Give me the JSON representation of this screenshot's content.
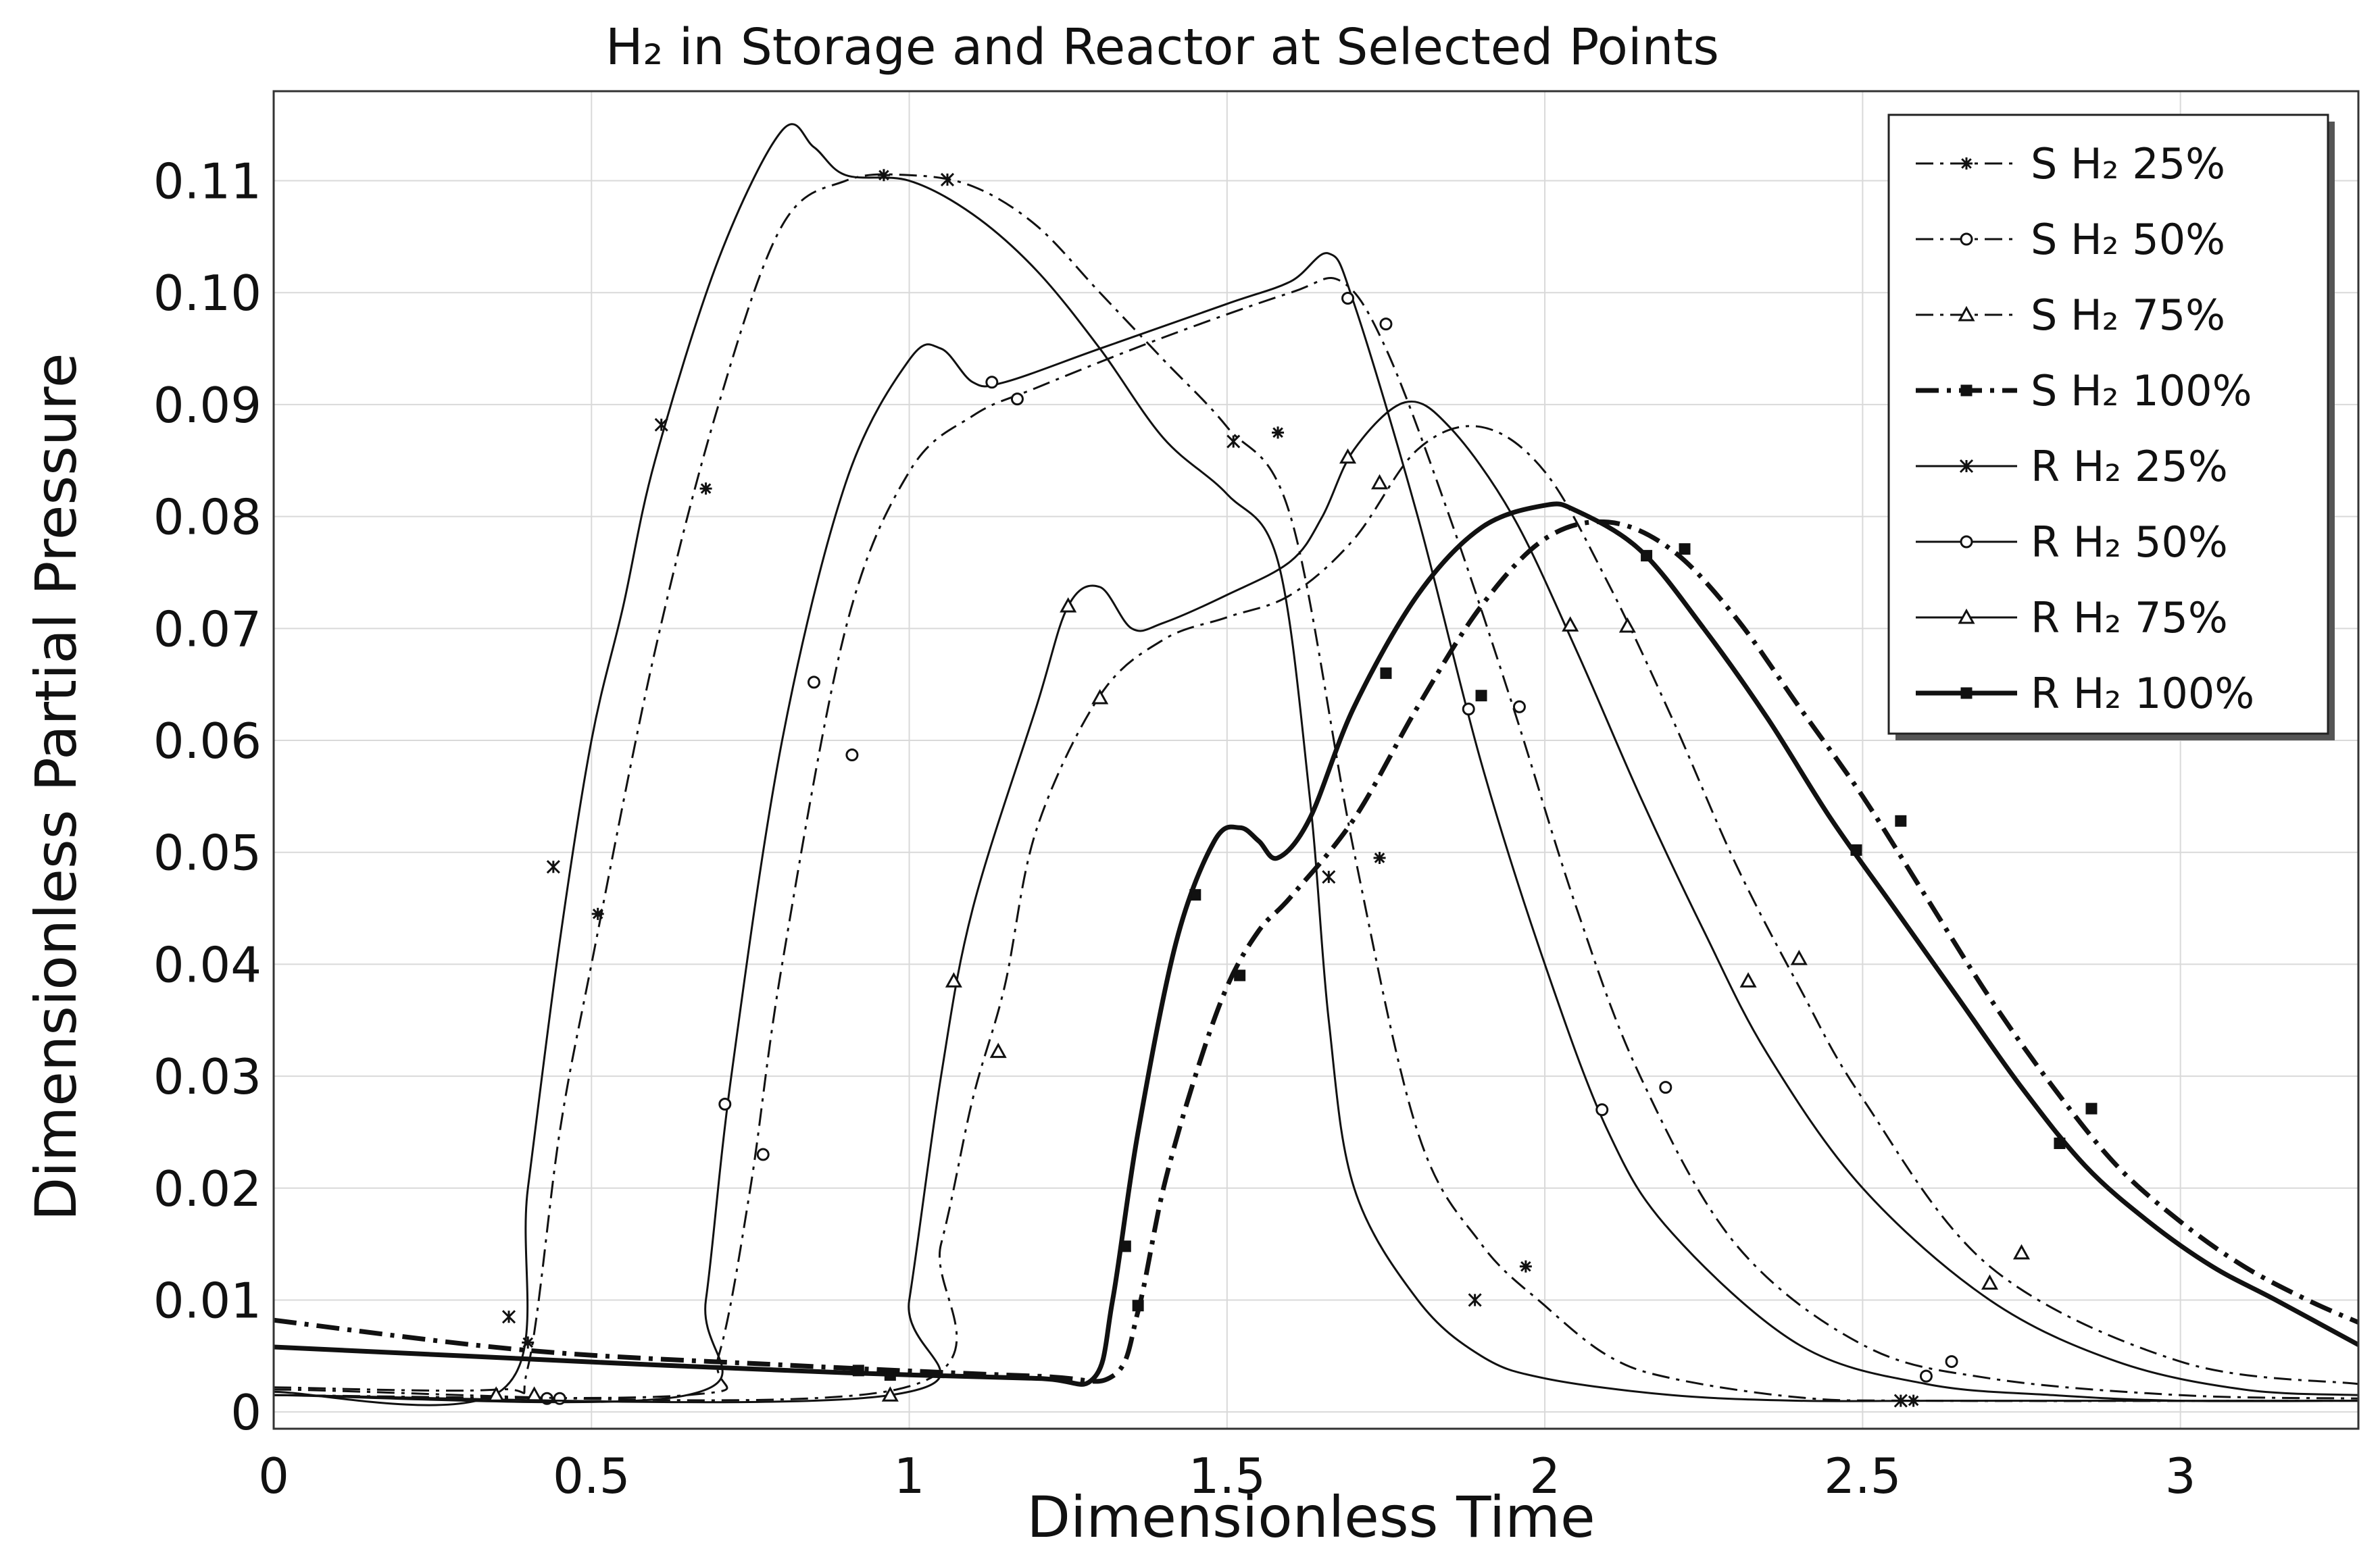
{
  "chart_data": {
    "type": "line",
    "title": "H₂ in Storage and Reactor at Selected Points",
    "xlabel": "Dimensionless Time",
    "ylabel": "Dimensionless Partial Pressure",
    "xlim": [
      0,
      3.28
    ],
    "ylim": [
      -0.0015,
      0.118
    ],
    "xticks": [
      0,
      0.5,
      1,
      1.5,
      2,
      2.5,
      3
    ],
    "xtick_labels": [
      "0",
      "0.5",
      "1",
      "1.5",
      "2",
      "2.5",
      "3"
    ],
    "yticks": [
      0,
      0.01,
      0.02,
      0.03,
      0.04,
      0.05,
      0.06,
      0.07,
      0.08,
      0.09,
      0.1,
      0.11
    ],
    "ytick_labels": [
      "0",
      "0.01",
      "0.02",
      "0.03",
      "0.04",
      "0.05",
      "0.06",
      "0.07",
      "0.08",
      "0.09",
      "0.10",
      "0.11"
    ],
    "grid": true,
    "legend_position": "top-right",
    "series": [
      {
        "name": "S H₂   25%",
        "style": "dashdot",
        "width": 3,
        "marker": "star",
        "x": [
          0,
          0.35,
          0.4,
          0.45,
          0.5,
          0.6,
          0.7,
          0.8,
          0.9,
          1.0,
          1.1,
          1.2,
          1.3,
          1.4,
          1.5,
          1.6,
          1.7,
          1.8,
          1.9,
          2.0,
          2.1,
          2.2,
          2.4,
          2.6,
          3.28
        ],
        "y": [
          0.0022,
          0.002,
          0.004,
          0.025,
          0.04,
          0.068,
          0.09,
          0.106,
          0.11,
          0.1105,
          0.1095,
          0.106,
          0.1,
          0.094,
          0.088,
          0.08,
          0.05,
          0.025,
          0.015,
          0.0095,
          0.005,
          0.003,
          0.0013,
          0.001,
          0.001
        ],
        "markers_x": [
          0.4,
          0.51,
          0.68,
          0.96,
          1.58,
          1.74,
          1.97,
          2.58
        ],
        "markers_y": [
          0.0062,
          0.0445,
          0.0825,
          0.1105,
          0.0875,
          0.0495,
          0.013,
          0.001
        ]
      },
      {
        "name": "S H₂ 50%",
        "style": "dashdot",
        "width": 3,
        "marker": "circle",
        "x": [
          0,
          0.65,
          0.7,
          0.75,
          0.8,
          0.9,
          1.0,
          1.1,
          1.2,
          1.4,
          1.6,
          1.68,
          1.75,
          1.85,
          1.95,
          2.05,
          2.15,
          2.3,
          2.5,
          2.7,
          3.0,
          3.28
        ],
        "y": [
          0.0015,
          0.0015,
          0.005,
          0.02,
          0.04,
          0.07,
          0.084,
          0.089,
          0.0915,
          0.096,
          0.1,
          0.101,
          0.095,
          0.08,
          0.063,
          0.045,
          0.03,
          0.015,
          0.006,
          0.003,
          0.0015,
          0.0012
        ],
        "markers_x": [
          0.43,
          0.77,
          0.91,
          1.17,
          1.75,
          1.96,
          2.19,
          2.64
        ],
        "markers_y": [
          0.0012,
          0.023,
          0.0587,
          0.0905,
          0.0972,
          0.063,
          0.029,
          0.0045
        ]
      },
      {
        "name": "S H₂  75%",
        "style": "dashdot",
        "width": 3,
        "marker": "triangle",
        "x": [
          0,
          0.98,
          1.05,
          1.1,
          1.15,
          1.2,
          1.3,
          1.4,
          1.5,
          1.6,
          1.7,
          1.8,
          1.9,
          2.0,
          2.1,
          2.2,
          2.3,
          2.4,
          2.5,
          2.7,
          3.0,
          3.28
        ],
        "y": [
          0.002,
          0.002,
          0.015,
          0.028,
          0.038,
          0.052,
          0.064,
          0.069,
          0.071,
          0.073,
          0.078,
          0.086,
          0.088,
          0.084,
          0.074,
          0.062,
          0.049,
          0.038,
          0.028,
          0.013,
          0.0045,
          0.0025
        ],
        "markers_x": [
          0.41,
          1.14,
          1.3,
          1.74,
          2.13,
          2.4,
          2.75
        ],
        "markers_y": [
          0.0015,
          0.0322,
          0.0638,
          0.083,
          0.0702,
          0.0405,
          0.0142
        ]
      },
      {
        "name": "S H₂  100%",
        "style": "dashdot",
        "width": 7,
        "marker": "square",
        "x": [
          0,
          0.4,
          0.8,
          1.2,
          1.32,
          1.36,
          1.4,
          1.45,
          1.5,
          1.55,
          1.6,
          1.7,
          1.8,
          1.9,
          2.0,
          2.1,
          2.2,
          2.3,
          2.4,
          2.5,
          2.6,
          2.7,
          2.8,
          2.9,
          3.0,
          3.1,
          3.2,
          3.28
        ],
        "y": [
          0.0082,
          0.0055,
          0.0042,
          0.0032,
          0.0032,
          0.009,
          0.02,
          0.03,
          0.038,
          0.043,
          0.046,
          0.053,
          0.063,
          0.072,
          0.078,
          0.0795,
          0.077,
          0.071,
          0.063,
          0.055,
          0.046,
          0.037,
          0.029,
          0.022,
          0.017,
          0.013,
          0.01,
          0.008
        ],
        "markers_x": [
          0.92,
          1.36,
          1.52,
          1.9,
          2.22,
          2.56,
          2.86
        ],
        "markers_y": [
          0.0037,
          0.0095,
          0.039,
          0.064,
          0.0771,
          0.0528,
          0.0271
        ]
      },
      {
        "name": "R H₂ 25%",
        "style": "solid",
        "width": 3,
        "marker": "x",
        "x": [
          0,
          0.36,
          0.4,
          0.45,
          0.5,
          0.55,
          0.6,
          0.7,
          0.8,
          0.85,
          0.9,
          1.0,
          1.1,
          1.2,
          1.3,
          1.4,
          1.5,
          1.58,
          1.63,
          1.66,
          1.7,
          1.8,
          1.9,
          2.0,
          2.2,
          2.4,
          2.6,
          2.8,
          3.0,
          3.28
        ],
        "y": [
          0.0018,
          0.002,
          0.02,
          0.042,
          0.06,
          0.072,
          0.085,
          0.103,
          0.1145,
          0.113,
          0.1105,
          0.11,
          0.107,
          0.102,
          0.095,
          0.087,
          0.082,
          0.076,
          0.055,
          0.035,
          0.02,
          0.01,
          0.005,
          0.003,
          0.0015,
          0.001,
          0.001,
          0.001,
          0.001,
          0.001
        ],
        "markers_x": [
          0.37,
          0.44,
          0.61,
          1.06,
          1.51,
          1.66,
          1.89,
          2.56
        ],
        "markers_y": [
          0.0085,
          0.0487,
          0.0882,
          0.1101,
          0.0867,
          0.0478,
          0.01,
          0.001
        ]
      },
      {
        "name": "R H₂  50%",
        "style": "solid",
        "width": 3,
        "marker": "circle",
        "x": [
          0,
          0.65,
          0.68,
          0.72,
          0.8,
          0.9,
          1.0,
          1.05,
          1.1,
          1.15,
          1.3,
          1.5,
          1.6,
          1.66,
          1.7,
          1.8,
          1.9,
          2.0,
          2.1,
          2.2,
          2.4,
          2.6,
          2.8,
          3.0,
          3.28
        ],
        "y": [
          0.0015,
          0.0015,
          0.01,
          0.03,
          0.06,
          0.083,
          0.094,
          0.095,
          0.092,
          0.092,
          0.095,
          0.099,
          0.101,
          0.1035,
          0.099,
          0.08,
          0.058,
          0.04,
          0.025,
          0.016,
          0.006,
          0.0025,
          0.0015,
          0.001,
          0.001
        ],
        "markers_x": [
          0.45,
          0.71,
          0.85,
          1.13,
          1.69,
          1.88,
          2.09,
          2.6
        ],
        "markers_y": [
          0.0012,
          0.0275,
          0.0652,
          0.092,
          0.0995,
          0.0628,
          0.027,
          0.0032
        ]
      },
      {
        "name": "R H₂  75%",
        "style": "solid",
        "width": 3,
        "marker": "triangle",
        "x": [
          0,
          0.97,
          1.0,
          1.05,
          1.1,
          1.2,
          1.25,
          1.3,
          1.35,
          1.4,
          1.5,
          1.6,
          1.65,
          1.7,
          1.78,
          1.85,
          1.95,
          2.05,
          2.15,
          2.25,
          2.35,
          2.5,
          2.7,
          2.9,
          3.1,
          3.28
        ],
        "y": [
          0.0015,
          0.0015,
          0.01,
          0.03,
          0.045,
          0.063,
          0.072,
          0.0737,
          0.07,
          0.0705,
          0.073,
          0.076,
          0.08,
          0.086,
          0.0902,
          0.088,
          0.08,
          0.068,
          0.055,
          0.043,
          0.032,
          0.02,
          0.01,
          0.0045,
          0.002,
          0.0015
        ],
        "markers_x": [
          0.35,
          0.97,
          1.07,
          1.25,
          1.69,
          2.04,
          2.32,
          2.7
        ],
        "markers_y": [
          0.0015,
          0.0015,
          0.0385,
          0.072,
          0.0853,
          0.0703,
          0.0385,
          0.0115
        ]
      },
      {
        "name": "R H₂ 100%",
        "style": "solid",
        "width": 7,
        "marker": "square",
        "x": [
          0,
          0.3,
          0.6,
          0.9,
          1.2,
          1.29,
          1.32,
          1.36,
          1.42,
          1.48,
          1.52,
          1.55,
          1.58,
          1.63,
          1.7,
          1.8,
          1.9,
          2.0,
          2.05,
          2.15,
          2.25,
          2.35,
          2.45,
          2.55,
          2.65,
          2.75,
          2.85,
          2.95,
          3.05,
          3.15,
          3.28
        ],
        "y": [
          0.0058,
          0.005,
          0.0042,
          0.0035,
          0.003,
          0.003,
          0.01,
          0.025,
          0.042,
          0.051,
          0.0522,
          0.051,
          0.0495,
          0.053,
          0.063,
          0.073,
          0.079,
          0.081,
          0.0805,
          0.077,
          0.07,
          0.062,
          0.053,
          0.045,
          0.037,
          0.029,
          0.022,
          0.017,
          0.013,
          0.01,
          0.006
        ],
        "markers_x": [
          0.97,
          1.34,
          1.45,
          1.75,
          2.16,
          2.49,
          2.81
        ],
        "markers_y": [
          0.0033,
          0.0148,
          0.0462,
          0.066,
          0.0765,
          0.0502,
          0.024
        ]
      }
    ]
  }
}
